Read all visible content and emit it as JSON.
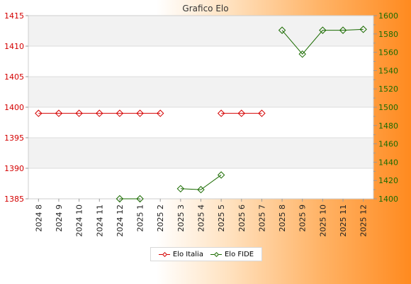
{
  "chart_data": {
    "type": "line",
    "title": "Grafico Elo",
    "categories": [
      "2024 8",
      "2024 9",
      "2024 10",
      "2024 11",
      "2024 12",
      "2025 1",
      "2025 2",
      "2025 3",
      "2025 4",
      "2025 5",
      "2025 6",
      "2025 7",
      "2025 8",
      "2025 9",
      "2025 10",
      "2025 11",
      "2025 12"
    ],
    "y_left": {
      "ticks": [
        "1385",
        "1390",
        "1395",
        "1400",
        "1405",
        "1410",
        "1415"
      ],
      "min": 1385,
      "max": 1415,
      "color": "#d40000"
    },
    "y_right": {
      "ticks": [
        "1400",
        "1420",
        "1440",
        "1460",
        "1480",
        "1500",
        "1520",
        "1540",
        "1560",
        "1580",
        "1600"
      ],
      "min": 1400,
      "max": 1600,
      "color": "#1a6b00"
    },
    "series": [
      {
        "name": "Elo Italia",
        "axis": "left",
        "color": "#d40000",
        "values": [
          1399,
          1399,
          1399,
          1399,
          1399,
          1399,
          1399,
          null,
          null,
          1399,
          1399,
          1399,
          null,
          null,
          null,
          null,
          null
        ]
      },
      {
        "name": "Elo FIDE",
        "axis": "right",
        "color": "#1a6b00",
        "values": [
          null,
          null,
          null,
          null,
          1400,
          1400,
          null,
          1411,
          1410,
          1426,
          null,
          null,
          1584,
          1558,
          1584,
          1584,
          1585
        ]
      }
    ],
    "grid": true,
    "legend": "bottom-center"
  }
}
